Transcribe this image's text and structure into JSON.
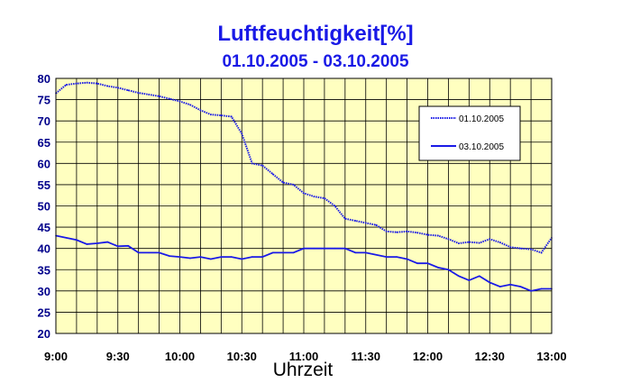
{
  "chart_data": {
    "type": "line",
    "title": "Luftfeuchtigkeit[%]",
    "subtitle": "01.10.2005 - 03.10.2005",
    "xlabel": "Uhrzeit",
    "ylabel": "",
    "x_ticks": [
      "9:00",
      "9:30",
      "10:00",
      "10:30",
      "11:00",
      "11:30",
      "12:00",
      "12:30",
      "13:00"
    ],
    "y_ticks": [
      20,
      25,
      30,
      35,
      40,
      45,
      50,
      55,
      60,
      65,
      70,
      75,
      80
    ],
    "xlim": [
      "9:00",
      "13:00"
    ],
    "ylim": [
      20,
      80
    ],
    "grid": true,
    "legend_position": "top-right",
    "colors": {
      "plot_background": "#ffffc0",
      "series": "#1a1ae6",
      "grid": "#000000",
      "axis_text": "#00008b"
    },
    "x": [
      "9:00",
      "9:05",
      "9:10",
      "9:15",
      "9:20",
      "9:25",
      "9:30",
      "9:35",
      "9:40",
      "9:45",
      "9:50",
      "9:55",
      "10:00",
      "10:05",
      "10:10",
      "10:15",
      "10:20",
      "10:25",
      "10:30",
      "10:35",
      "10:40",
      "10:45",
      "10:50",
      "10:55",
      "11:00",
      "11:05",
      "11:10",
      "11:15",
      "11:20",
      "11:25",
      "11:30",
      "11:35",
      "11:40",
      "11:45",
      "11:50",
      "11:55",
      "12:00",
      "12:05",
      "12:10",
      "12:15",
      "12:20",
      "12:25",
      "12:30",
      "12:35",
      "12:40",
      "12:45",
      "12:50",
      "12:55",
      "13:00"
    ],
    "series": [
      {
        "name": "01.10.2005",
        "style": "dotted",
        "values": [
          76.5,
          78.5,
          78.8,
          79,
          78.8,
          78.2,
          77.8,
          77.2,
          76.6,
          76.2,
          75.8,
          75.2,
          74.6,
          73.8,
          72.5,
          71.5,
          71.3,
          71,
          67,
          60,
          59.5,
          57.5,
          55.5,
          55,
          53,
          52.2,
          51.8,
          50,
          47,
          46.5,
          46,
          45.5,
          44,
          43.8,
          44,
          43.7,
          43.2,
          43,
          42.2,
          41.2,
          41.5,
          41.3,
          42.2,
          41.4,
          40.3,
          40,
          39.8,
          39,
          42.5
        ]
      },
      {
        "name": "03.10.2005",
        "style": "solid",
        "values": [
          43,
          42.5,
          42,
          41,
          41.2,
          41.5,
          40.5,
          40.6,
          39,
          39,
          39,
          38.2,
          38,
          37.7,
          38,
          37.5,
          38,
          38,
          37.5,
          38,
          38,
          39,
          39,
          39,
          40,
          40,
          40,
          40,
          40,
          39,
          39,
          38.5,
          38,
          38,
          37.5,
          36.5,
          36.5,
          35.5,
          35,
          33.5,
          32.5,
          33.5,
          32,
          31,
          31.5,
          31,
          30,
          30.5,
          30.5
        ]
      }
    ]
  }
}
